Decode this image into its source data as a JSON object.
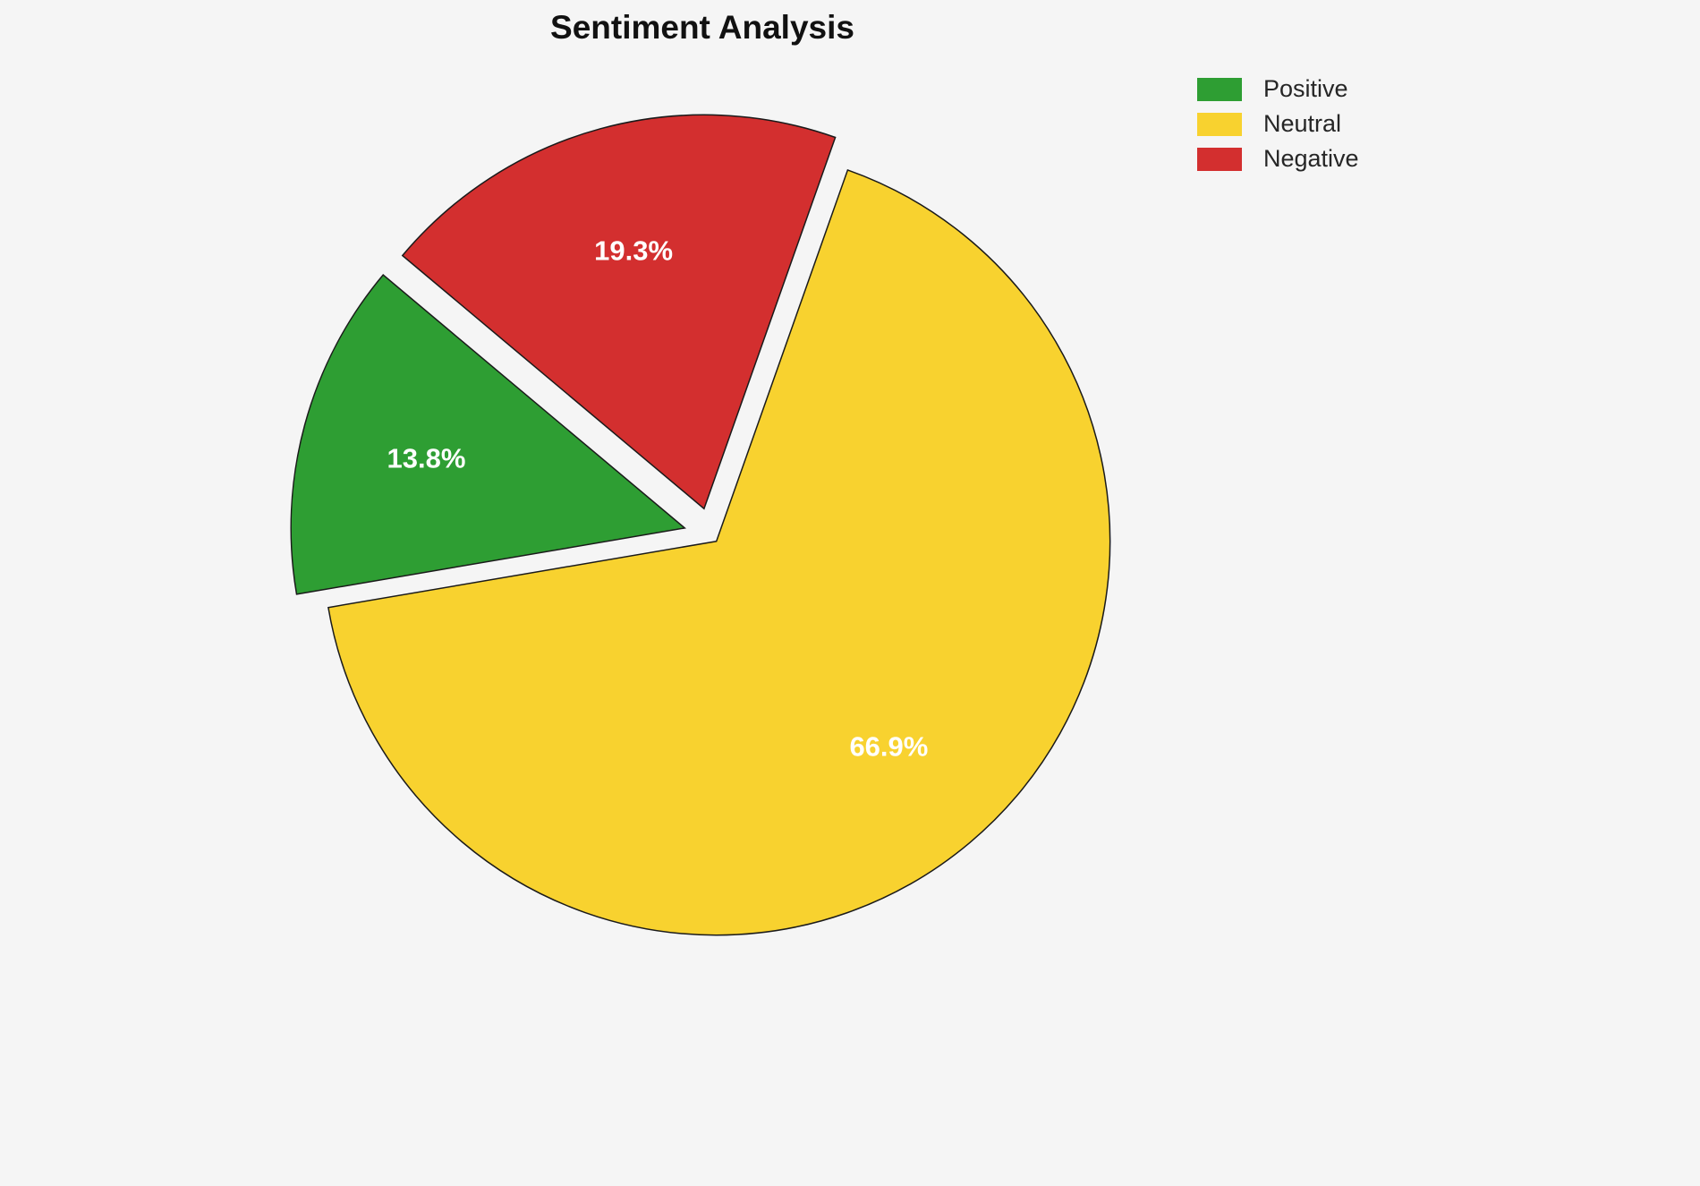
{
  "chart_data": {
    "type": "pie",
    "title": "Sentiment Analysis",
    "background": "#f5f5f5",
    "edge_color": "#1a1a1a",
    "center": [
      795,
      598
    ],
    "radius": 440,
    "start_angle": 140,
    "direction": "counterclockwise",
    "pct_distance": 0.68,
    "legend_position": "upper right",
    "slices": [
      {
        "label": "Positive",
        "value": 13.8,
        "pct_label": "13.8%",
        "color": "#2e9e33",
        "explode": 0.07
      },
      {
        "label": "Neutral",
        "value": 66.9,
        "pct_label": "66.9%",
        "color": "#f8d22f",
        "explode": 0.02
      },
      {
        "label": "Negative",
        "value": 19.3,
        "pct_label": "19.3%",
        "color": "#d32f2f",
        "explode": 0.07
      }
    ]
  }
}
